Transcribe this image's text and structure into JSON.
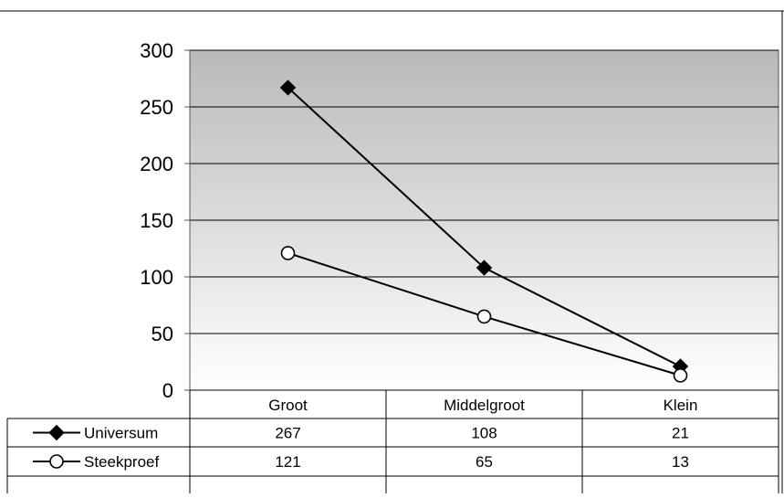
{
  "chart_data": {
    "type": "line",
    "title": "",
    "categories": [
      "Groot",
      "Middelgroot",
      "Klein"
    ],
    "series": [
      {
        "name": "Universum",
        "values": [
          267,
          108,
          21
        ],
        "marker": "diamond-filled",
        "color": "#000000"
      },
      {
        "name": "Steekproef",
        "values": [
          121,
          65,
          13
        ],
        "marker": "circle-open",
        "color": "#000000"
      }
    ],
    "ylim": [
      0,
      300
    ],
    "yticks": [
      "0",
      "50",
      "100",
      "150",
      "200",
      "250",
      "300"
    ],
    "grid": true,
    "background_gradient": [
      "#b9b9b9",
      "#ffffff"
    ],
    "legend": "data-table"
  }
}
